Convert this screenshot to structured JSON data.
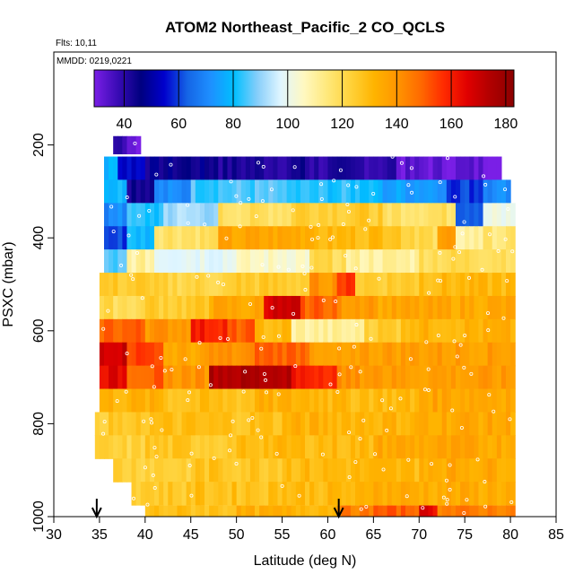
{
  "chart_data": {
    "type": "heatmap",
    "title": "ATOM2 Northeast_Pacific_2 CO_QCLS",
    "flights_label": "Flts: 10,11",
    "date_label": "MMDD: 0219,0221",
    "xlabel": "Latitude (deg N)",
    "ylabel": "PSXC (mbar)",
    "xlim": [
      30,
      85
    ],
    "ylim": [
      1000,
      0
    ],
    "x_ticks": [
      "30",
      "35",
      "40",
      "45",
      "50",
      "55",
      "60",
      "65",
      "70",
      "75",
      "80",
      "85"
    ],
    "y_ticks": [
      "200",
      "400",
      "600",
      "800",
      "1000"
    ],
    "colorbar": {
      "range": [
        29,
        183
      ],
      "ticks": [
        "40",
        "60",
        "80",
        "100",
        "120",
        "140",
        "160",
        "180"
      ],
      "colors": [
        "#7a1fe6",
        "#3a0bb5",
        "#000080",
        "#0000cc",
        "#1565e6",
        "#1e90ff",
        "#00bfff",
        "#87cefa",
        "#e0f6ff",
        "#fff8c0",
        "#ffe87a",
        "#ffd23a",
        "#ffb400",
        "#ff9500",
        "#ff6a00",
        "#ff2a00",
        "#e00000",
        "#b00000",
        "#8b0000"
      ]
    },
    "arrows_lat": [
      34.7,
      61.2
    ],
    "bands": [
      {
        "p": 200,
        "h": 38,
        "segments": [
          [
            36.5,
            38,
            40
          ],
          [
            38,
            39.5,
            32
          ]
        ]
      },
      {
        "p": 250,
        "h": 50,
        "segments": [
          [
            35.5,
            37,
            78
          ],
          [
            37,
            40,
            55
          ],
          [
            40,
            48,
            45
          ],
          [
            48,
            58,
            42
          ],
          [
            58,
            67.5,
            40
          ],
          [
            67.5,
            79,
            32
          ]
        ]
      },
      {
        "p": 300,
        "h": 50,
        "segments": [
          [
            35.5,
            38,
            80
          ],
          [
            38,
            41,
            45
          ],
          [
            41,
            45,
            70
          ],
          [
            45,
            55,
            85
          ],
          [
            55,
            66,
            82
          ],
          [
            66,
            73,
            75
          ],
          [
            73,
            77,
            60
          ],
          [
            77,
            80,
            70
          ]
        ]
      },
      {
        "p": 350,
        "h": 50,
        "segments": [
          [
            35.5,
            38,
            70
          ],
          [
            38,
            42,
            82
          ],
          [
            42,
            48,
            92
          ],
          [
            48,
            56,
            118
          ],
          [
            56,
            66,
            125
          ],
          [
            66,
            74,
            118
          ],
          [
            74,
            77,
            65
          ],
          [
            77,
            80.5,
            100
          ]
        ]
      },
      {
        "p": 400,
        "h": 50,
        "segments": [
          [
            35.5,
            38,
            60
          ],
          [
            38,
            41,
            80
          ],
          [
            41,
            48,
            118
          ],
          [
            48,
            58,
            135
          ],
          [
            58,
            68,
            130
          ],
          [
            68,
            72,
            120
          ],
          [
            72,
            74,
            138
          ],
          [
            74,
            77,
            110
          ],
          [
            77,
            80.5,
            115
          ]
        ]
      },
      {
        "p": 450,
        "h": 50,
        "segments": [
          [
            35.5,
            38,
            85
          ],
          [
            38,
            41,
            110
          ],
          [
            41,
            50,
            100
          ],
          [
            50,
            58,
            105
          ],
          [
            58,
            62,
            120
          ],
          [
            62,
            70,
            110
          ],
          [
            70,
            80.5,
            120
          ]
        ]
      },
      {
        "p": 500,
        "h": 50,
        "segments": [
          [
            35,
            40,
            125
          ],
          [
            40,
            50,
            122
          ],
          [
            50,
            58,
            125
          ],
          [
            58,
            61,
            140
          ],
          [
            61,
            63,
            155
          ],
          [
            63,
            70,
            125
          ],
          [
            70,
            80.5,
            130
          ]
        ]
      },
      {
        "p": 550,
        "h": 50,
        "segments": [
          [
            35,
            40,
            120
          ],
          [
            40,
            47,
            125
          ],
          [
            47,
            53,
            135
          ],
          [
            53,
            57,
            168
          ],
          [
            57,
            61,
            150
          ],
          [
            61,
            65,
            140
          ],
          [
            65,
            80.5,
            135
          ]
        ]
      },
      {
        "p": 600,
        "h": 50,
        "segments": [
          [
            35,
            40,
            150
          ],
          [
            40,
            45,
            140
          ],
          [
            45,
            49,
            160
          ],
          [
            49,
            52,
            150
          ],
          [
            52,
            56,
            130
          ],
          [
            56,
            64,
            110
          ],
          [
            64,
            68,
            125
          ],
          [
            68,
            80.5,
            132
          ]
        ]
      },
      {
        "p": 650,
        "h": 50,
        "segments": [
          [
            35,
            38,
            170
          ],
          [
            38,
            42,
            155
          ],
          [
            42,
            47,
            135
          ],
          [
            47,
            52,
            140
          ],
          [
            52,
            58,
            150
          ],
          [
            58,
            63,
            135
          ],
          [
            63,
            80.5,
            138
          ]
        ]
      },
      {
        "p": 700,
        "h": 50,
        "segments": [
          [
            35,
            38,
            165
          ],
          [
            38,
            42,
            150
          ],
          [
            42,
            47,
            140
          ],
          [
            47,
            56,
            175
          ],
          [
            56,
            61,
            160
          ],
          [
            61,
            66,
            140
          ],
          [
            66,
            80.5,
            138
          ]
        ]
      },
      {
        "p": 750,
        "h": 50,
        "segments": [
          [
            35,
            42,
            132
          ],
          [
            42,
            52,
            128
          ],
          [
            52,
            60,
            132
          ],
          [
            60,
            70,
            130
          ],
          [
            70,
            80.5,
            136
          ]
        ]
      },
      {
        "p": 800,
        "h": 50,
        "segments": [
          [
            34.5,
            40,
            125
          ],
          [
            40,
            55,
            128
          ],
          [
            55,
            70,
            132
          ],
          [
            70,
            80.5,
            135
          ]
        ]
      },
      {
        "p": 850,
        "h": 50,
        "segments": [
          [
            34.5,
            40,
            122
          ],
          [
            40,
            50,
            126
          ],
          [
            50,
            65,
            130
          ],
          [
            65,
            80.5,
            135
          ]
        ]
      },
      {
        "p": 900,
        "h": 50,
        "segments": [
          [
            36.5,
            45,
            124
          ],
          [
            45,
            55,
            127
          ],
          [
            55,
            70,
            130
          ],
          [
            70,
            80.5,
            135
          ]
        ]
      },
      {
        "p": 950,
        "h": 50,
        "segments": [
          [
            38.5,
            45,
            126
          ],
          [
            45,
            55,
            128
          ],
          [
            55,
            65,
            130
          ],
          [
            65,
            80.5,
            134
          ]
        ]
      },
      {
        "p": 1000,
        "h": 48,
        "segments": [
          [
            40,
            50,
            128
          ],
          [
            50,
            61,
            132
          ],
          [
            61,
            65,
            145
          ],
          [
            65,
            70,
            150
          ],
          [
            70,
            72,
            165
          ],
          [
            72,
            80.5,
            145
          ]
        ]
      }
    ]
  }
}
